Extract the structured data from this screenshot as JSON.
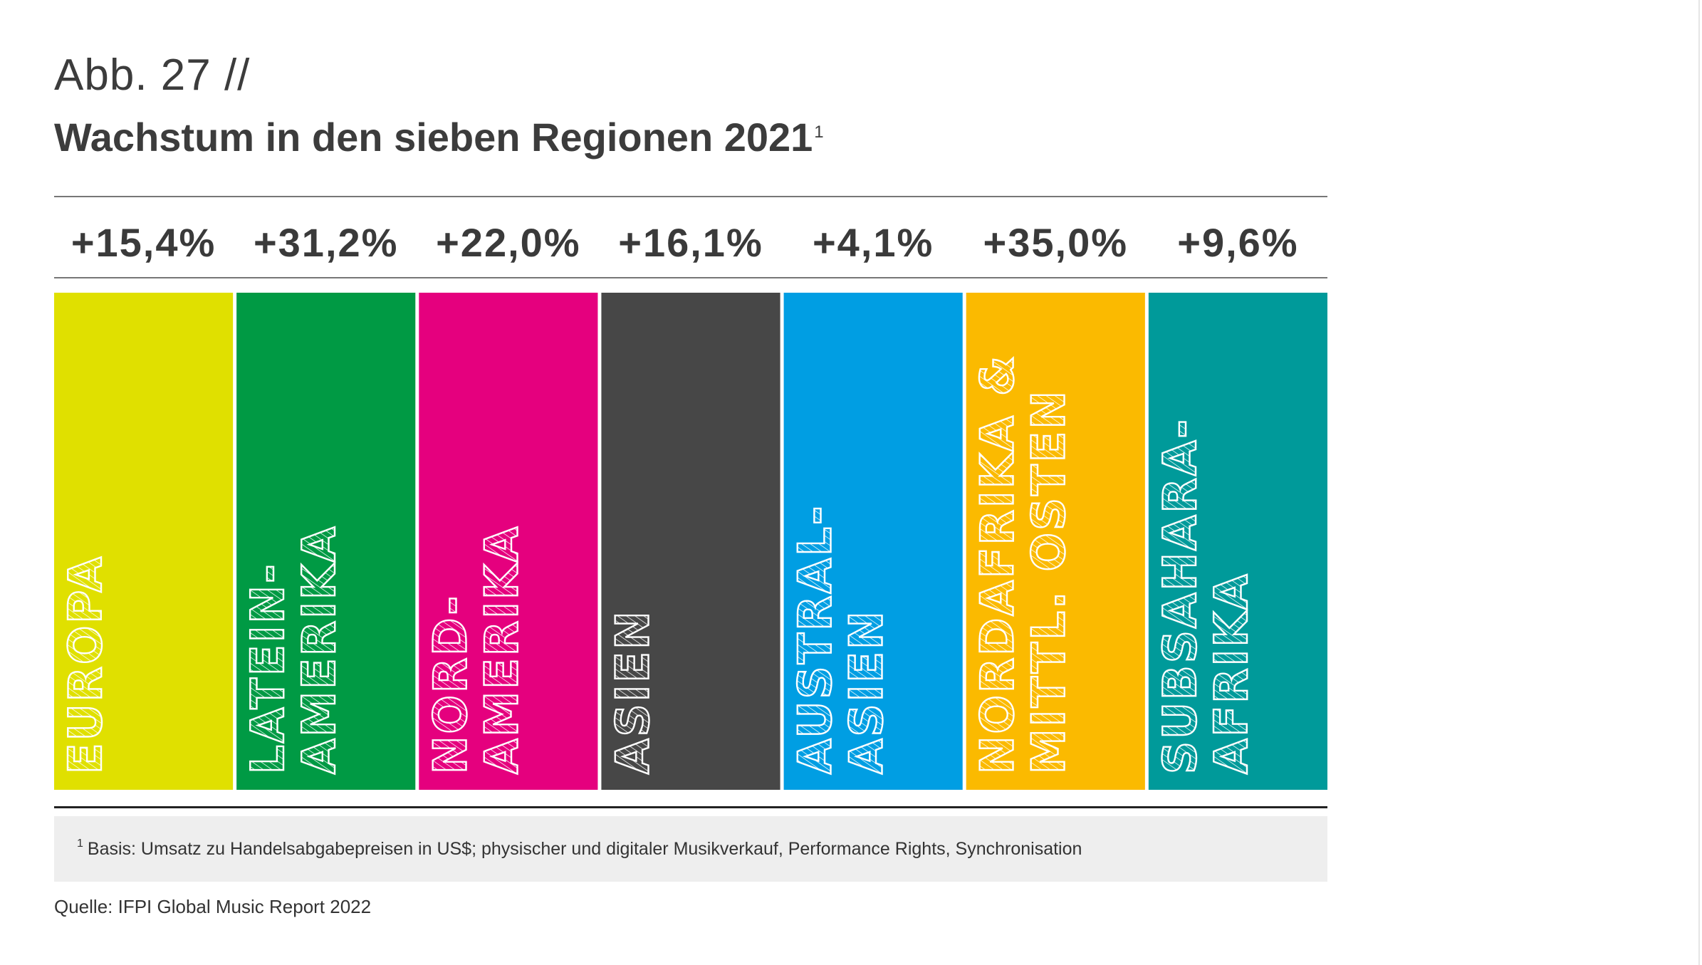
{
  "figure": {
    "label": "Abb. 27 //",
    "title": "Wachstum in den sieben Regionen 2021",
    "title_footnote_marker": "1",
    "footnote_marker": "1",
    "footnote": "Basis: Umsatz zu Handelsabgabepreisen in US$; physischer und digitaler Musikverkauf, Performance Rights, Synchronisation",
    "source": "Quelle: IFPI Global Music Report 2022"
  },
  "chart_data": {
    "type": "bar",
    "title": "Wachstum in den sieben Regionen 2021",
    "xlabel": "",
    "ylabel": "",
    "categories": [
      "EUROPA",
      "LATEIN-AMERIKA",
      "NORD-AMERIKA",
      "ASIEN",
      "AUSTRAL-ASIEN",
      "NORDAFRIKA & MITTL. OSTEN",
      "SUBSAHARA-AFRIKA"
    ],
    "values": [
      15.4,
      31.2,
      22.0,
      16.1,
      4.1,
      35.0,
      9.6
    ],
    "value_labels": [
      "+15,4%",
      "+31,2%",
      "+22,0%",
      "+16,1%",
      "+4,1%",
      "+35,0%",
      "+9,6%"
    ],
    "bar_label_lines": [
      [
        "EUROPA"
      ],
      [
        "LATEIN-",
        "AMERIKA"
      ],
      [
        "NORD-",
        "AMERIKA"
      ],
      [
        "ASIEN"
      ],
      [
        "AUSTRAL-",
        "ASIEN"
      ],
      [
        "NORDAFRIKA &",
        "MITTL. OSTEN"
      ],
      [
        "SUBSAHARA-",
        "AFRIKA"
      ]
    ],
    "colors": [
      "#e0e000",
      "#009a44",
      "#e5007e",
      "#474747",
      "#009ee3",
      "#fbba00",
      "#009a9a"
    ],
    "grid": false,
    "legend": "none"
  }
}
